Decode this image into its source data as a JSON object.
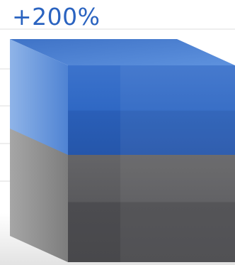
{
  "chart_data": {
    "type": "bar",
    "annotations": [
      "+200%"
    ],
    "bars": [
      {
        "label": "",
        "relative_value": 1,
        "color": "#5a5a5d"
      },
      {
        "label": "",
        "relative_value": 3,
        "color": "#2a63c0"
      }
    ],
    "grid": true,
    "legend": "none"
  },
  "colors": {
    "accent": "#2a63c0",
    "blue_front": "#2a63c0",
    "blue_top": "#4f86d6",
    "blue_side": "#6d9bdf",
    "gray_front": "#5a5a5d",
    "gray_top": "#9a9a9a",
    "gray_side": "#8c8c8c",
    "gridline": "#dddddd",
    "floor": "#eeeeee"
  }
}
